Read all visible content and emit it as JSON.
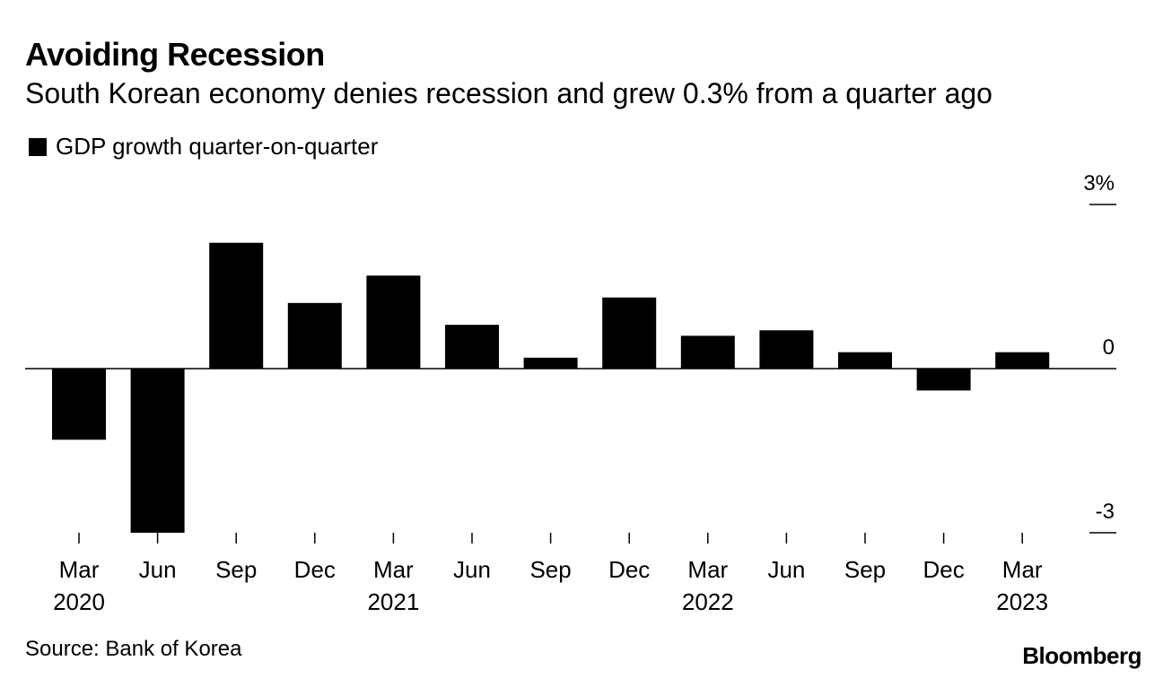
{
  "title": "Avoiding Recession",
  "subtitle": "South Korean economy denies recession and grew 0.3% from a quarter ago",
  "source": "Source: Bank of Korea",
  "brand": "Bloomberg",
  "colors": {
    "bar": "#000000",
    "axis": "#000000",
    "background": "#ffffff"
  },
  "chart_data": {
    "type": "bar",
    "title": "Avoiding Recession",
    "subtitle": "South Korean economy denies recession and grew 0.3% from a quarter ago",
    "xlabel": "",
    "ylabel": "",
    "categories": [
      "Mar",
      "Jun",
      "Sep",
      "Dec",
      "Mar",
      "Jun",
      "Sep",
      "Dec",
      "Mar",
      "Jun",
      "Sep",
      "Dec",
      "Mar"
    ],
    "year_labels": [
      {
        "index": 0,
        "label": "2020"
      },
      {
        "index": 4,
        "label": "2021"
      },
      {
        "index": 8,
        "label": "2022"
      },
      {
        "index": 12,
        "label": "2023"
      }
    ],
    "series": [
      {
        "name": "GDP growth quarter-on-quarter",
        "values": [
          -1.3,
          -3.0,
          2.3,
          1.2,
          1.7,
          0.8,
          0.2,
          1.3,
          0.6,
          0.7,
          0.3,
          -0.4,
          0.3
        ]
      }
    ],
    "ylim": [
      -3,
      3
    ],
    "yticks": [
      {
        "value": 3,
        "label": "3%"
      },
      {
        "value": 0,
        "label": "0"
      },
      {
        "value": -3,
        "label": "-3"
      }
    ],
    "legend": "top-left",
    "grid": false
  }
}
